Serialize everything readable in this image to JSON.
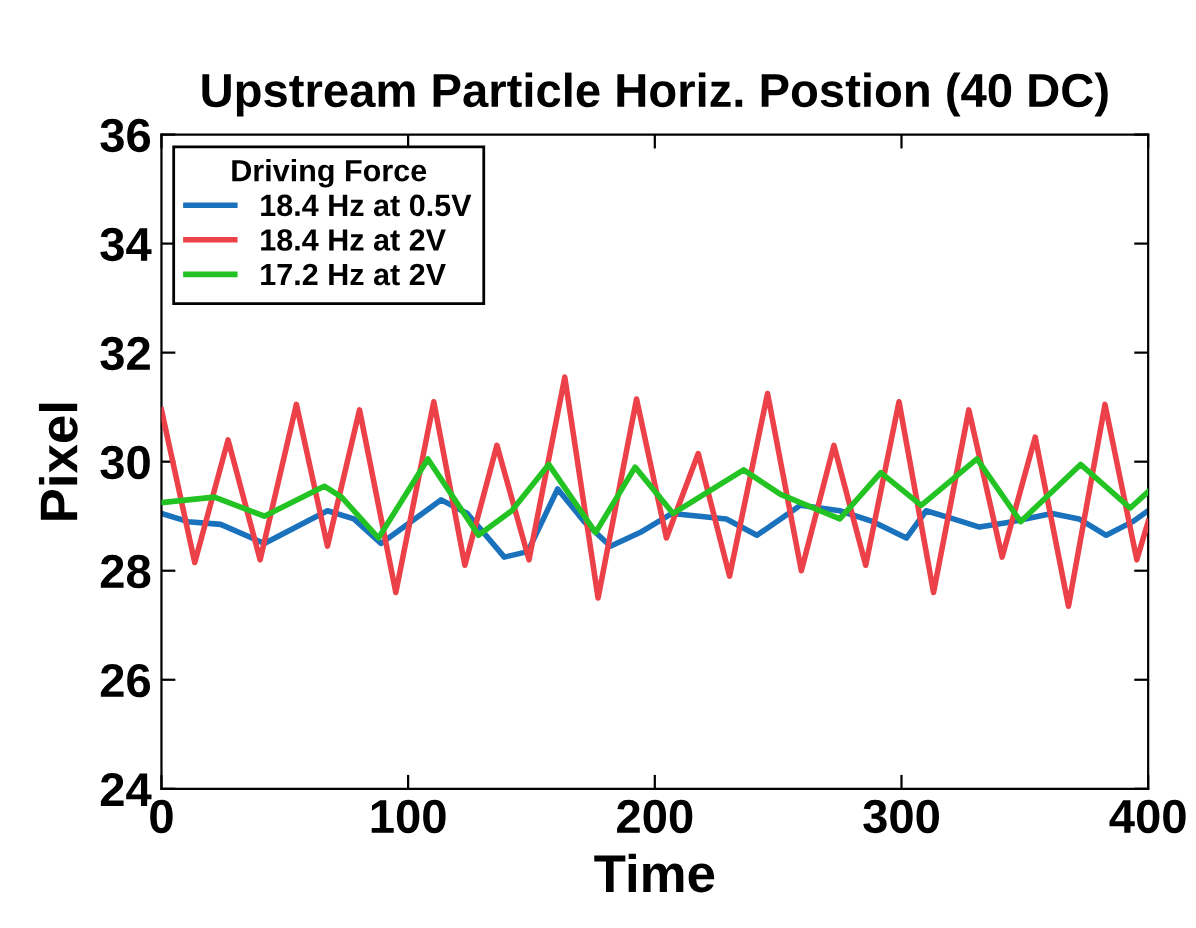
{
  "chart_data": {
    "type": "line",
    "title": "Upstream Particle Horiz. Postion (40 DC)",
    "xlabel": "Time",
    "ylabel": "Pixel",
    "legend_title": "Driving Force",
    "legend": "top left",
    "grid": false,
    "line_style": "solid",
    "marker": "none",
    "xlim": [
      0,
      400
    ],
    "xticks": [
      0,
      100,
      200,
      300,
      400
    ],
    "ylim": [
      24,
      36
    ],
    "yticks": [
      24,
      26,
      28,
      30,
      32,
      34,
      36
    ],
    "series": [
      {
        "name": "18.4 Hz at 0.5V",
        "color": "#1a72bd",
        "x": [
          0,
          10.8,
          24,
          41.7,
          67.3,
          78,
          89,
          113.4,
          124,
          139,
          148.5,
          160.6,
          171.4,
          182,
          194,
          207,
          229,
          241.4,
          259,
          275,
          288.5,
          302,
          310,
          321,
          331.6,
          345,
          361,
          372,
          383,
          393.7,
          400
        ],
        "values": [
          29.05,
          28.9,
          28.85,
          28.5,
          29.1,
          28.95,
          28.5,
          29.3,
          29.05,
          28.25,
          28.35,
          29.5,
          28.9,
          28.45,
          28.7,
          29.05,
          28.95,
          28.65,
          29.2,
          29.1,
          28.9,
          28.6,
          29.1,
          28.95,
          28.8,
          28.9,
          29.05,
          28.95,
          28.65,
          28.9,
          29.1
        ]
      },
      {
        "name": "18.4 Hz at 2V",
        "color": "#ec4148",
        "x": [
          0,
          13.5,
          27,
          40,
          54.7,
          67.3,
          80.3,
          95,
          110.4,
          123,
          136,
          149,
          163.5,
          177,
          192.6,
          204.7,
          217.6,
          230.3,
          245.7,
          259.4,
          272.6,
          285.5,
          299,
          313,
          327.3,
          340.8,
          354.2,
          367.7,
          382.5,
          395.4,
          400
        ],
        "values": [
          30.95,
          28.15,
          30.4,
          28.2,
          31.05,
          28.45,
          30.95,
          27.6,
          31.1,
          28.1,
          30.3,
          28.2,
          31.55,
          27.5,
          31.15,
          28.6,
          30.15,
          27.9,
          31.25,
          28.0,
          30.3,
          28.1,
          31.1,
          27.6,
          30.95,
          28.25,
          30.45,
          27.35,
          31.05,
          28.2,
          28.9
        ]
      },
      {
        "name": "17.2 Hz at 2V",
        "color": "#22c322",
        "x": [
          0,
          21.5,
          41.7,
          66,
          73,
          88,
          108,
          128.5,
          142,
          157,
          176,
          192,
          207.4,
          236,
          251,
          275,
          291.6,
          308,
          330.6,
          348.3,
          372.6,
          392.7,
          400
        ],
        "values": [
          29.25,
          29.35,
          29.0,
          29.55,
          29.35,
          28.6,
          30.05,
          28.65,
          29.1,
          29.95,
          28.7,
          29.9,
          29.05,
          29.85,
          29.4,
          28.95,
          29.8,
          29.2,
          30.05,
          28.9,
          29.95,
          29.15,
          29.45
        ]
      }
    ]
  }
}
